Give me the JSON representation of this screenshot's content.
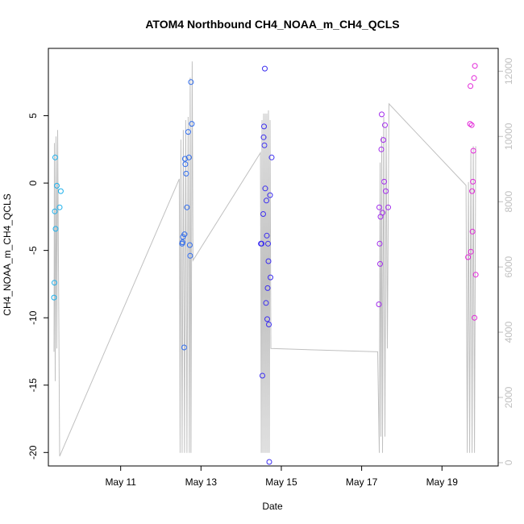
{
  "chart_data": {
    "type": "scatter",
    "title": "ATOM4 Northbound CH4_NOAA_m_CH4_QCLS",
    "xlabel": "Date",
    "ylabel": "CH4_NOAA_m_CH4_QCLS",
    "x_unit": "days since May 10 00:00",
    "xlim": [
      -0.8,
      10.4
    ],
    "ylim": [
      -21,
      10
    ],
    "y_ticks": [
      -20,
      -15,
      -10,
      -5,
      0,
      5
    ],
    "x_ticks": [
      {
        "x": 1,
        "label": "May 11"
      },
      {
        "x": 3,
        "label": "May 13"
      },
      {
        "x": 5,
        "label": "May 15"
      },
      {
        "x": 7,
        "label": "May 17"
      },
      {
        "x": 9,
        "label": "May 19"
      }
    ],
    "y2_label": "",
    "y2lim": [
      -100,
      12700
    ],
    "y2_ticks": [
      0,
      2000,
      4000,
      6000,
      8000,
      10000,
      12000
    ],
    "point_colors": {
      "flight1": "#1cb0ec",
      "flight2": "#2f6cee",
      "flight3": "#3c2ef0",
      "flight4": "#a22bec",
      "flight5": "#e227d8"
    },
    "points": [
      {
        "x": -0.66,
        "y": -8.5,
        "g": "flight1"
      },
      {
        "x": -0.65,
        "y": -7.4,
        "g": "flight1"
      },
      {
        "x": -0.64,
        "y": -2.1,
        "g": "flight1"
      },
      {
        "x": -0.63,
        "y": 1.9,
        "g": "flight1"
      },
      {
        "x": -0.62,
        "y": -3.4,
        "g": "flight1"
      },
      {
        "x": -0.59,
        "y": -0.2,
        "g": "flight1"
      },
      {
        "x": -0.52,
        "y": -1.8,
        "g": "flight1"
      },
      {
        "x": -0.49,
        "y": -0.6,
        "g": "flight1"
      },
      {
        "x": 2.53,
        "y": -4.5,
        "g": "flight2"
      },
      {
        "x": 2.54,
        "y": -4.4,
        "g": "flight2"
      },
      {
        "x": 2.55,
        "y": -4.0,
        "g": "flight2"
      },
      {
        "x": 2.58,
        "y": -12.2,
        "g": "flight2"
      },
      {
        "x": 2.59,
        "y": -3.8,
        "g": "flight2"
      },
      {
        "x": 2.6,
        "y": 1.8,
        "g": "flight2"
      },
      {
        "x": 2.61,
        "y": 1.4,
        "g": "flight2"
      },
      {
        "x": 2.63,
        "y": 0.7,
        "g": "flight2"
      },
      {
        "x": 2.65,
        "y": -1.8,
        "g": "flight2"
      },
      {
        "x": 2.68,
        "y": 3.8,
        "g": "flight2"
      },
      {
        "x": 2.7,
        "y": 1.9,
        "g": "flight2"
      },
      {
        "x": 2.72,
        "y": -4.6,
        "g": "flight2"
      },
      {
        "x": 2.73,
        "y": -5.4,
        "g": "flight2"
      },
      {
        "x": 2.75,
        "y": 7.5,
        "g": "flight2"
      },
      {
        "x": 2.77,
        "y": 4.4,
        "g": "flight2"
      },
      {
        "x": 4.49,
        "y": -4.5,
        "g": "flight3"
      },
      {
        "x": 4.51,
        "y": -4.5,
        "g": "flight3"
      },
      {
        "x": 4.53,
        "y": -14.3,
        "g": "flight3"
      },
      {
        "x": 4.55,
        "y": -2.3,
        "g": "flight3"
      },
      {
        "x": 4.56,
        "y": 3.4,
        "g": "flight3"
      },
      {
        "x": 4.57,
        "y": 4.2,
        "g": "flight3"
      },
      {
        "x": 4.58,
        "y": 2.8,
        "g": "flight3"
      },
      {
        "x": 4.59,
        "y": 8.5,
        "g": "flight3"
      },
      {
        "x": 4.6,
        "y": -0.4,
        "g": "flight3"
      },
      {
        "x": 4.62,
        "y": -8.9,
        "g": "flight3"
      },
      {
        "x": 4.63,
        "y": -1.3,
        "g": "flight3"
      },
      {
        "x": 4.64,
        "y": -3.9,
        "g": "flight3"
      },
      {
        "x": 4.65,
        "y": -10.1,
        "g": "flight3"
      },
      {
        "x": 4.66,
        "y": -7.8,
        "g": "flight3"
      },
      {
        "x": 4.67,
        "y": -4.5,
        "g": "flight3"
      },
      {
        "x": 4.68,
        "y": -5.8,
        "g": "flight3"
      },
      {
        "x": 4.69,
        "y": -10.5,
        "g": "flight3"
      },
      {
        "x": 4.7,
        "y": -20.7,
        "g": "flight3"
      },
      {
        "x": 4.72,
        "y": -0.9,
        "g": "flight3"
      },
      {
        "x": 4.73,
        "y": -7.0,
        "g": "flight3"
      },
      {
        "x": 4.76,
        "y": 1.9,
        "g": "flight3"
      },
      {
        "x": 7.43,
        "y": -9.0,
        "g": "flight4"
      },
      {
        "x": 7.44,
        "y": -1.8,
        "g": "flight4"
      },
      {
        "x": 7.45,
        "y": -4.5,
        "g": "flight4"
      },
      {
        "x": 7.46,
        "y": -6.0,
        "g": "flight4"
      },
      {
        "x": 7.47,
        "y": -2.5,
        "g": "flight4"
      },
      {
        "x": 7.49,
        "y": 2.5,
        "g": "flight4"
      },
      {
        "x": 7.5,
        "y": 5.1,
        "g": "flight4"
      },
      {
        "x": 7.52,
        "y": -2.2,
        "g": "flight4"
      },
      {
        "x": 7.54,
        "y": 3.2,
        "g": "flight4"
      },
      {
        "x": 7.56,
        "y": 0.1,
        "g": "flight4"
      },
      {
        "x": 7.58,
        "y": 4.3,
        "g": "flight4"
      },
      {
        "x": 7.6,
        "y": -0.6,
        "g": "flight4"
      },
      {
        "x": 7.66,
        "y": -1.8,
        "g": "flight4"
      },
      {
        "x": 9.65,
        "y": -5.5,
        "g": "flight5"
      },
      {
        "x": 9.7,
        "y": 4.4,
        "g": "flight5"
      },
      {
        "x": 9.71,
        "y": 7.2,
        "g": "flight5"
      },
      {
        "x": 9.72,
        "y": -5.1,
        "g": "flight5"
      },
      {
        "x": 9.74,
        "y": 4.3,
        "g": "flight5"
      },
      {
        "x": 9.75,
        "y": -0.6,
        "g": "flight5"
      },
      {
        "x": 9.76,
        "y": -3.6,
        "g": "flight5"
      },
      {
        "x": 9.77,
        "y": 0.1,
        "g": "flight5"
      },
      {
        "x": 9.78,
        "y": 2.4,
        "g": "flight5"
      },
      {
        "x": 9.8,
        "y": 7.8,
        "g": "flight5"
      },
      {
        "x": 9.81,
        "y": -10.0,
        "g": "flight5"
      },
      {
        "x": 9.82,
        "y": 8.7,
        "g": "flight5"
      },
      {
        "x": 9.84,
        "y": -6.8,
        "g": "flight5"
      }
    ],
    "altitude_series": {
      "name": "altitude",
      "color": "#c0c0c0",
      "points": [
        [
          -0.66,
          3400
        ],
        [
          -0.65,
          9800
        ],
        [
          -0.63,
          2500
        ],
        [
          -0.61,
          10000
        ],
        [
          -0.59,
          3500
        ],
        [
          -0.57,
          10200
        ],
        [
          -0.52,
          200
        ],
        [
          2.46,
          8700
        ],
        [
          2.48,
          300
        ],
        [
          2.5,
          9900
        ],
        [
          2.53,
          300
        ],
        [
          2.56,
          10200
        ],
        [
          2.59,
          300
        ],
        [
          2.62,
          10500
        ],
        [
          2.65,
          300
        ],
        [
          2.68,
          10600
        ],
        [
          2.71,
          300
        ],
        [
          2.73,
          11800
        ],
        [
          2.75,
          300
        ],
        [
          2.78,
          12300
        ],
        [
          2.8,
          6200
        ],
        [
          4.48,
          9500
        ],
        [
          4.5,
          300
        ],
        [
          4.52,
          10500
        ],
        [
          4.54,
          300
        ],
        [
          4.56,
          10700
        ],
        [
          4.58,
          300
        ],
        [
          4.6,
          10700
        ],
        [
          4.62,
          300
        ],
        [
          4.64,
          10700
        ],
        [
          4.66,
          300
        ],
        [
          4.68,
          10800
        ],
        [
          4.7,
          300
        ],
        [
          4.72,
          10500
        ],
        [
          4.74,
          3500
        ],
        [
          7.4,
          3400
        ],
        [
          7.44,
          300
        ],
        [
          7.46,
          9200
        ],
        [
          7.48,
          800
        ],
        [
          7.5,
          10000
        ],
        [
          7.52,
          300
        ],
        [
          7.55,
          10600
        ],
        [
          7.58,
          800
        ],
        [
          7.61,
          10300
        ],
        [
          7.64,
          3500
        ],
        [
          7.68,
          11000
        ],
        [
          9.6,
          8500
        ],
        [
          9.63,
          300
        ],
        [
          9.66,
          8600
        ],
        [
          9.69,
          300
        ],
        [
          9.72,
          9500
        ],
        [
          9.75,
          300
        ],
        [
          9.78,
          9700
        ],
        [
          9.81,
          300
        ],
        [
          9.84,
          9700
        ]
      ]
    }
  }
}
